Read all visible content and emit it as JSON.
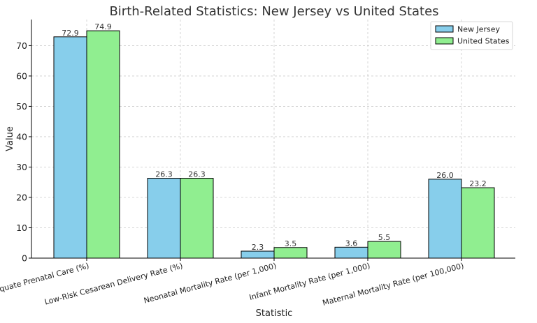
{
  "chart_data": {
    "type": "bar",
    "title": "Birth-Related Statistics: New Jersey vs United States",
    "xlabel": "Statistic",
    "ylabel": "Value",
    "ylim": [
      0,
      78.6
    ],
    "yticks": [
      0,
      10,
      20,
      30,
      40,
      50,
      60,
      70
    ],
    "grid": true,
    "legend_position": "top-right",
    "categories": [
      "Adequate Prenatal Care (%)",
      "Low-Risk Cesarean Delivery Rate (%)",
      "Neonatal Mortality Rate (per 1,000)",
      "Infant Mortality Rate (per 1,000)",
      "Maternal Mortality Rate (per 100,000)"
    ],
    "series": [
      {
        "name": "New Jersey",
        "color": "#87ceeb",
        "values": [
          72.9,
          26.3,
          2.3,
          3.6,
          26.0
        ],
        "labels": [
          "72.9",
          "26.3",
          "2.3",
          "3.6",
          "26.0"
        ]
      },
      {
        "name": "United States",
        "color": "#90ee90",
        "values": [
          74.9,
          26.3,
          3.5,
          5.5,
          23.2
        ],
        "labels": [
          "74.9",
          "26.3",
          "3.5",
          "5.5",
          "23.2"
        ]
      }
    ]
  }
}
